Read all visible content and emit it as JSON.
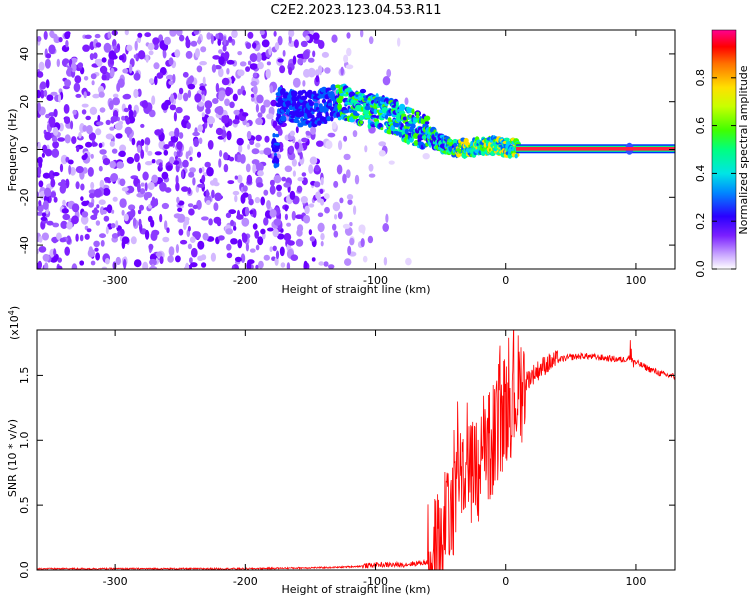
{
  "figure": {
    "title": "C2E2.2023.123.04.53.R11"
  },
  "chart_data": [
    {
      "type": "heatmap",
      "xlabel": "Height of straight line (km)",
      "ylabel": "Frequency (Hz)",
      "xlim": [
        -360,
        130
      ],
      "ylim": [
        -50,
        50
      ],
      "xticks": [
        -300,
        -200,
        -100,
        0,
        100
      ],
      "yticks": [
        -40,
        -20,
        0,
        20,
        40
      ],
      "colorbar": {
        "label": "Normalized spectral amplitude",
        "range": [
          0.0,
          1.0
        ],
        "ticks": [
          "0.0",
          "0.2",
          "0.4",
          "0.6",
          "0.8"
        ],
        "colormap": "rainbow (white/purple low to red/magenta high)"
      },
      "ridge": {
        "x": [
          -175,
          -150,
          -125,
          -100,
          -85,
          -70,
          -60,
          -50,
          -40,
          -30,
          -20,
          -10,
          0,
          10,
          50,
          100,
          130
        ],
        "y": [
          18,
          17,
          20,
          16,
          13,
          9,
          6,
          3,
          1,
          0.5,
          1,
          1.5,
          1,
          0.5,
          0.3,
          0.3,
          0.3
        ]
      },
      "grid": false
    },
    {
      "type": "line",
      "xlabel": "Height of straight line (km)",
      "ylabel": "SNR (10 * v/v)",
      "y_scale_label": "(x10",
      "y_scale_exponent": "4",
      "y_scale_suffix": ")",
      "xlim": [
        -360,
        130
      ],
      "ylim": [
        0,
        1.85
      ],
      "xticks": [
        -300,
        -200,
        -100,
        0,
        100
      ],
      "yticks": [
        "0.0",
        "0.5",
        "1.0",
        "1.5"
      ],
      "series": [
        {
          "color": "#ff0000",
          "x": [
            -360,
            -300,
            -200,
            -130,
            -110,
            -100,
            -80,
            -60,
            -50,
            -40,
            -35,
            -30,
            -20,
            -10,
            -5,
            0,
            10,
            20,
            30,
            40,
            50,
            60,
            70,
            80,
            90,
            95,
            100,
            110,
            120,
            130
          ],
          "y": [
            0.01,
            0.01,
            0.01,
            0.02,
            0.03,
            0.04,
            0.04,
            0.06,
            0.2,
            0.55,
            0.85,
            0.7,
            0.75,
            1.0,
            1.15,
            1.25,
            1.4,
            1.5,
            1.58,
            1.62,
            1.64,
            1.65,
            1.64,
            1.63,
            1.62,
            1.64,
            1.6,
            1.55,
            1.51,
            1.49
          ]
        }
      ],
      "grid": false
    }
  ]
}
